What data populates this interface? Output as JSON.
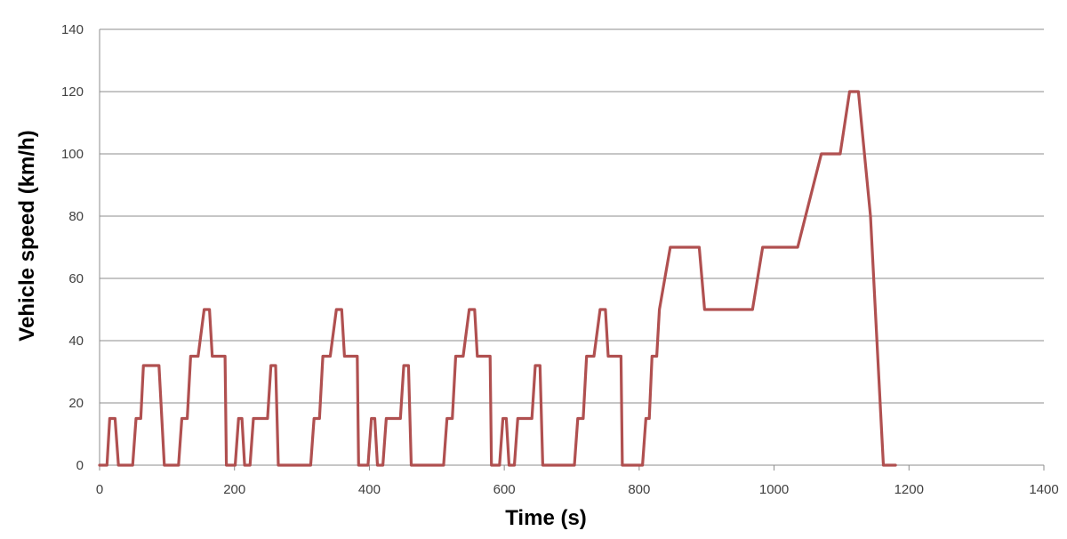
{
  "chart_data": {
    "type": "line",
    "title": "",
    "xlabel": "Time (s)",
    "ylabel": "Vehicle speed (km/h)",
    "xlim": [
      0,
      1400
    ],
    "ylim": [
      0,
      140
    ],
    "x_ticks": [
      0,
      200,
      400,
      600,
      800,
      1000,
      1200,
      1400
    ],
    "y_ticks": [
      0,
      20,
      40,
      60,
      80,
      100,
      120,
      140
    ],
    "grid": "horizontal",
    "legend": "none",
    "series": [
      {
        "color": "#b05050",
        "x": [
          0,
          11,
          15,
          23,
          28,
          49,
          54,
          61,
          65,
          88,
          96,
          117,
          122,
          130,
          135,
          146,
          155,
          163,
          167,
          177,
          181,
          186,
          188,
          201,
          206,
          211,
          215,
          223,
          228,
          249,
          254,
          261,
          265,
          288,
          296,
          313,
          318,
          326,
          331,
          342,
          351,
          359,
          363,
          373,
          377,
          382,
          384,
          398,
          403,
          408,
          412,
          420,
          425,
          446,
          451,
          458,
          462,
          485,
          493,
          510,
          515,
          523,
          528,
          539,
          548,
          556,
          560,
          570,
          574,
          579,
          581,
          593,
          598,
          603,
          607,
          615,
          620,
          641,
          646,
          653,
          657,
          680,
          688,
          704,
          709,
          717,
          722,
          733,
          742,
          750,
          754,
          764,
          768,
          773,
          775,
          805,
          810,
          815,
          819,
          826,
          830,
          846,
          889,
          897,
          968,
          983,
          1035,
          1070,
          1098,
          1112,
          1125,
          1143,
          1150,
          1162,
          1180
        ],
        "y": [
          0,
          0,
          15,
          15,
          0,
          0,
          15,
          15,
          32,
          32,
          0,
          0,
          15,
          15,
          35,
          35,
          50,
          50,
          35,
          35,
          35,
          35,
          0,
          0,
          15,
          15,
          0,
          0,
          15,
          15,
          32,
          32,
          0,
          0,
          0,
          0,
          15,
          15,
          35,
          35,
          50,
          50,
          35,
          35,
          35,
          35,
          0,
          0,
          15,
          15,
          0,
          0,
          15,
          15,
          32,
          32,
          0,
          0,
          0,
          0,
          15,
          15,
          35,
          35,
          50,
          50,
          35,
          35,
          35,
          35,
          0,
          0,
          15,
          15,
          0,
          0,
          15,
          15,
          32,
          32,
          0,
          0,
          0,
          0,
          15,
          15,
          35,
          35,
          50,
          50,
          35,
          35,
          35,
          35,
          0,
          0,
          15,
          15,
          35,
          35,
          50,
          70,
          70,
          50,
          50,
          70,
          70,
          100,
          100,
          120,
          120,
          80,
          50,
          0,
          0
        ]
      }
    ]
  }
}
